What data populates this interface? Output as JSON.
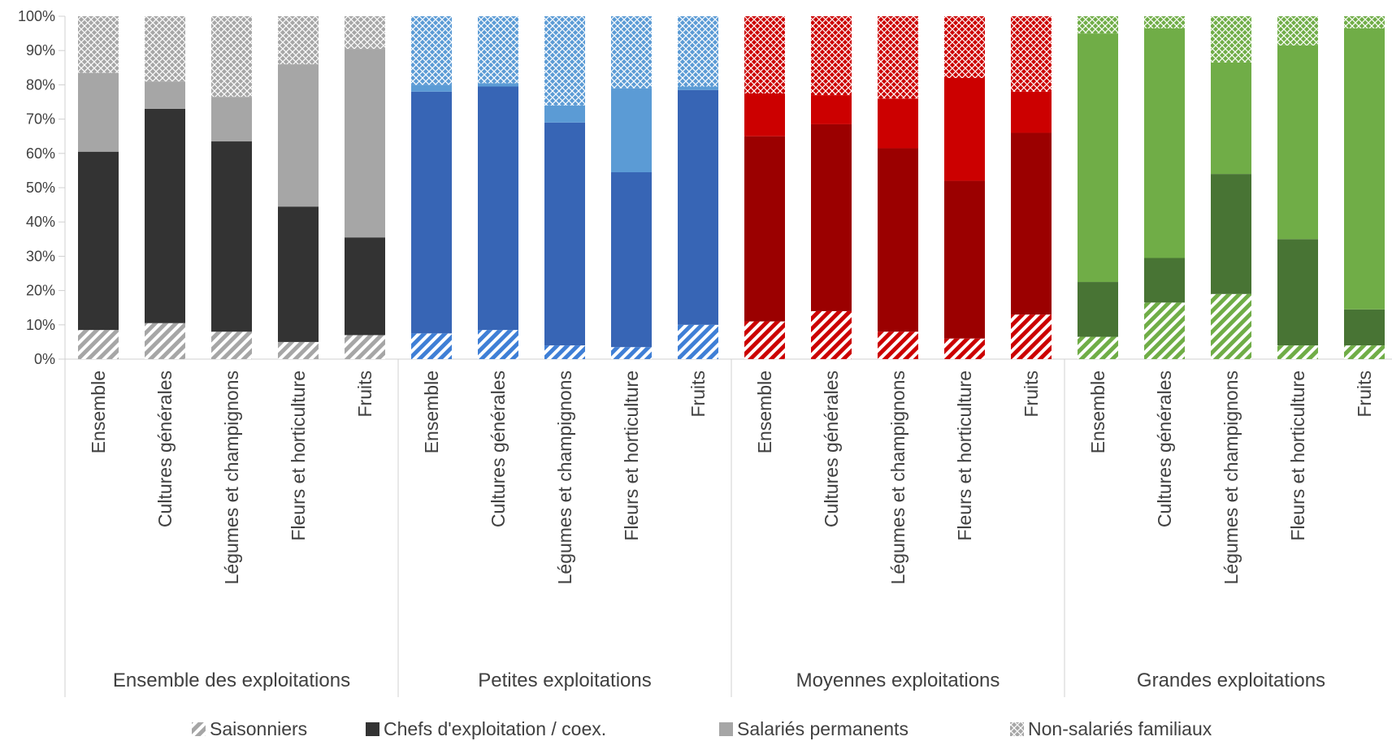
{
  "chart_data": {
    "type": "bar",
    "stacked": true,
    "normalized_percent": true,
    "ylim": [
      0,
      100
    ],
    "y_ticks": [
      "0%",
      "10%",
      "20%",
      "30%",
      "40%",
      "50%",
      "60%",
      "70%",
      "80%",
      "90%",
      "100%"
    ],
    "grid": false,
    "legend_position": "bottom",
    "legend": [
      {
        "name": "Saisonniers",
        "pattern": "diagonal-hatch"
      },
      {
        "name": "Chefs d'exploitation / coex.",
        "pattern": "solid-dark"
      },
      {
        "name": "Salariés permanents",
        "pattern": "solid-light"
      },
      {
        "name": "Non-salariés familiaux",
        "pattern": "crosshatch"
      }
    ],
    "groups": [
      {
        "label": "Ensemble des exploitations",
        "colors": {
          "dark": "#333333",
          "light": "#a6a6a6",
          "hatch": "#a6a6a6",
          "cross": "#a6a6a6"
        },
        "categories": [
          "Ensemble",
          "Cultures générales",
          "Légumes et champignons",
          "Fleurs et horticulture",
          "Fruits"
        ],
        "series": {
          "Saisonniers": [
            8.5,
            10.5,
            8,
            5,
            7
          ],
          "Chefs d'exploitation / coex.": [
            52,
            62.5,
            55.5,
            39.5,
            28.5
          ],
          "Salariés permanents": [
            23,
            8,
            13,
            41.5,
            55
          ],
          "Non-salariés familiaux": [
            16.5,
            19,
            23.5,
            14,
            9.5
          ]
        }
      },
      {
        "label": "Petites exploitations",
        "colors": {
          "dark": "#3765b5",
          "light": "#5b9bd5",
          "hatch": "#3f7fd6",
          "cross": "#5b9bd5"
        },
        "categories": [
          "Ensemble",
          "Cultures générales",
          "Légumes et champignons",
          "Fleurs et horticulture",
          "Fruits"
        ],
        "series": {
          "Saisonniers": [
            7.5,
            8.5,
            4,
            3.5,
            10
          ],
          "Chefs d'exploitation / coex.": [
            70.5,
            71,
            65,
            51,
            68.5
          ],
          "Salariés permanents": [
            2,
            1,
            5,
            24.5,
            1
          ],
          "Non-salariés familiaux": [
            20,
            19.5,
            26,
            21,
            20.5
          ]
        }
      },
      {
        "label": "Moyennes exploitations",
        "colors": {
          "dark": "#9b0000",
          "light": "#cc0000",
          "hatch": "#cc0000",
          "cross": "#cc0000"
        },
        "categories": [
          "Ensemble",
          "Cultures générales",
          "Légumes et champignons",
          "Fleurs et horticulture",
          "Fruits"
        ],
        "series": {
          "Saisonniers": [
            11,
            14,
            8,
            6,
            13
          ],
          "Chefs d'exploitation / coex.": [
            54,
            54.5,
            53.5,
            46,
            53
          ],
          "Salariés permanents": [
            12.5,
            8.5,
            14.5,
            30,
            12
          ],
          "Non-salariés familiaux": [
            22.5,
            23,
            24,
            18,
            22
          ]
        }
      },
      {
        "label": "Grandes exploitations",
        "colors": {
          "dark": "#487434",
          "light": "#70ad47",
          "hatch": "#70ad47",
          "cross": "#70ad47"
        },
        "categories": [
          "Ensemble",
          "Cultures générales",
          "Légumes et champignons",
          "Fleurs et horticulture",
          "Fruits"
        ],
        "series": {
          "Saisonniers": [
            6.5,
            16.5,
            19,
            4,
            4
          ],
          "Chefs d'exploitation / coex.": [
            16,
            13,
            35,
            31,
            10.5
          ],
          "Salariés permanents": [
            72.5,
            67,
            32.5,
            56.5,
            82
          ],
          "Non-salariés familiaux": [
            5,
            3.5,
            13.5,
            8.5,
            3.5
          ]
        }
      }
    ]
  }
}
